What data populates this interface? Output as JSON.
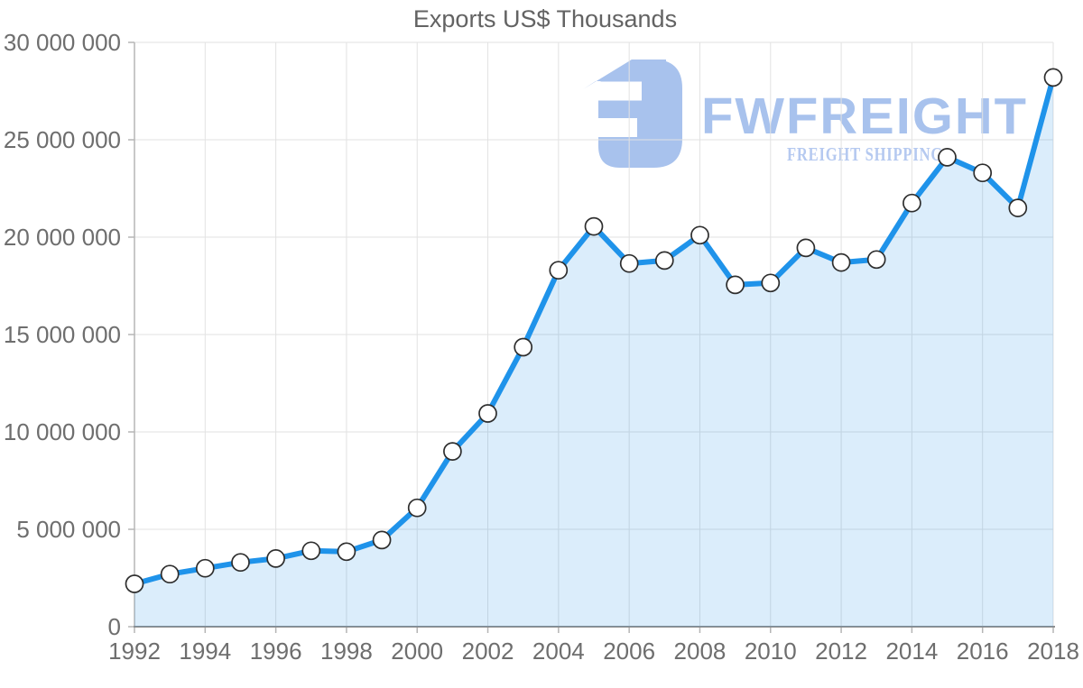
{
  "page": {
    "background": "#ffffff"
  },
  "chart_data": {
    "type": "area",
    "title": "Exports US$ Thousands",
    "xlabel": "",
    "ylabel": "",
    "x": [
      1992,
      1993,
      1994,
      1995,
      1996,
      1997,
      1998,
      1999,
      2000,
      2001,
      2002,
      2003,
      2004,
      2005,
      2006,
      2007,
      2008,
      2009,
      2010,
      2011,
      2012,
      2013,
      2014,
      2015,
      2016,
      2017,
      2018
    ],
    "series": [
      {
        "name": "Exports US$ Thousands",
        "values": [
          2200000,
          2700000,
          3000000,
          3300000,
          3500000,
          3900000,
          3850000,
          4450000,
          6100000,
          9000000,
          10950000,
          14350000,
          18300000,
          20550000,
          18650000,
          18800000,
          20100000,
          17550000,
          17650000,
          19450000,
          18700000,
          18850000,
          21750000,
          24100000,
          23300000,
          21500000,
          28200000
        ]
      }
    ],
    "ylim": [
      0,
      30000000
    ],
    "y_tick_step": 5000000,
    "y_tick_labels": [
      "0",
      "5 000 000",
      "10 000 000",
      "15 000 000",
      "20 000 000",
      "25 000 000",
      "30 000 000"
    ],
    "x_label_every": 2,
    "x_tick_labels": [
      "1992",
      "1994",
      "1996",
      "1998",
      "2000",
      "2002",
      "2004",
      "2006",
      "2008",
      "2010",
      "2012",
      "2014",
      "2016",
      "2018"
    ],
    "grid": "on",
    "legend": "none",
    "number_format": "space-grouped",
    "marker": "open-circle"
  },
  "logo": {
    "name": "FWFREIGHT",
    "subtitle": "FREIGHT SHIPPING"
  },
  "colors": {
    "line": "#1f93ea",
    "fill": "rgba(31,143,232,0.16)",
    "marker_fill": "#ffffff",
    "marker_stroke": "#2e2e2e",
    "grid": "#e2e2e2",
    "axis_y": "#b5b5b5",
    "axis_x": "#8f8f8f",
    "tick": "#b5b5b5",
    "label": "#6e6e6e",
    "title": "#636363",
    "logo_primary": "#a8c2ed",
    "logo_subtitle": "#b5c9f0"
  }
}
